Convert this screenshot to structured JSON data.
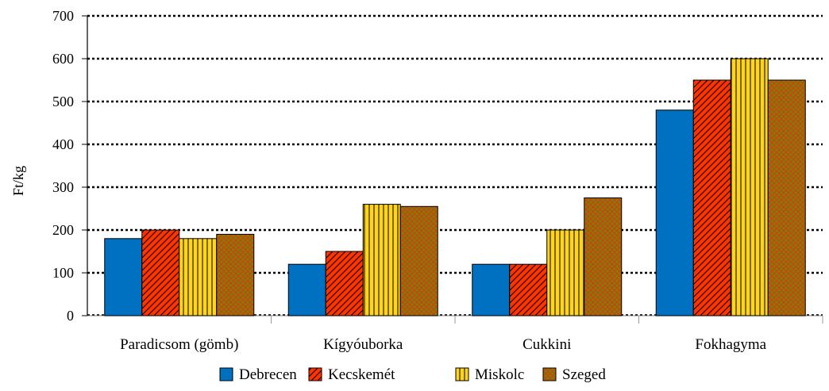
{
  "chart_data": {
    "type": "bar",
    "title": "",
    "xlabel": "",
    "ylabel": "Ft/kg",
    "ylim": [
      0,
      700
    ],
    "yticks": [
      0,
      100,
      200,
      300,
      400,
      500,
      600,
      700
    ],
    "grid": true,
    "legend_position": "bottom",
    "categories": [
      "Paradicsom (gömb)",
      "Kígyóuborka",
      "Cukkini",
      "Fokhagyma"
    ],
    "series": [
      {
        "name": "Debrecen",
        "values": [
          180,
          120,
          120,
          480
        ],
        "color": "#0070C0",
        "pattern": "solid"
      },
      {
        "name": "Kecskemét",
        "values": [
          200,
          150,
          120,
          550
        ],
        "color": "#FF3300",
        "pattern": "diagonal"
      },
      {
        "name": "Miskolc",
        "values": [
          180,
          260,
          200,
          600
        ],
        "color": "#FFD320",
        "pattern": "vertical"
      },
      {
        "name": "Szeged",
        "values": [
          190,
          255,
          275,
          550
        ],
        "color": "#808000",
        "pattern": "crosshatch"
      }
    ]
  }
}
